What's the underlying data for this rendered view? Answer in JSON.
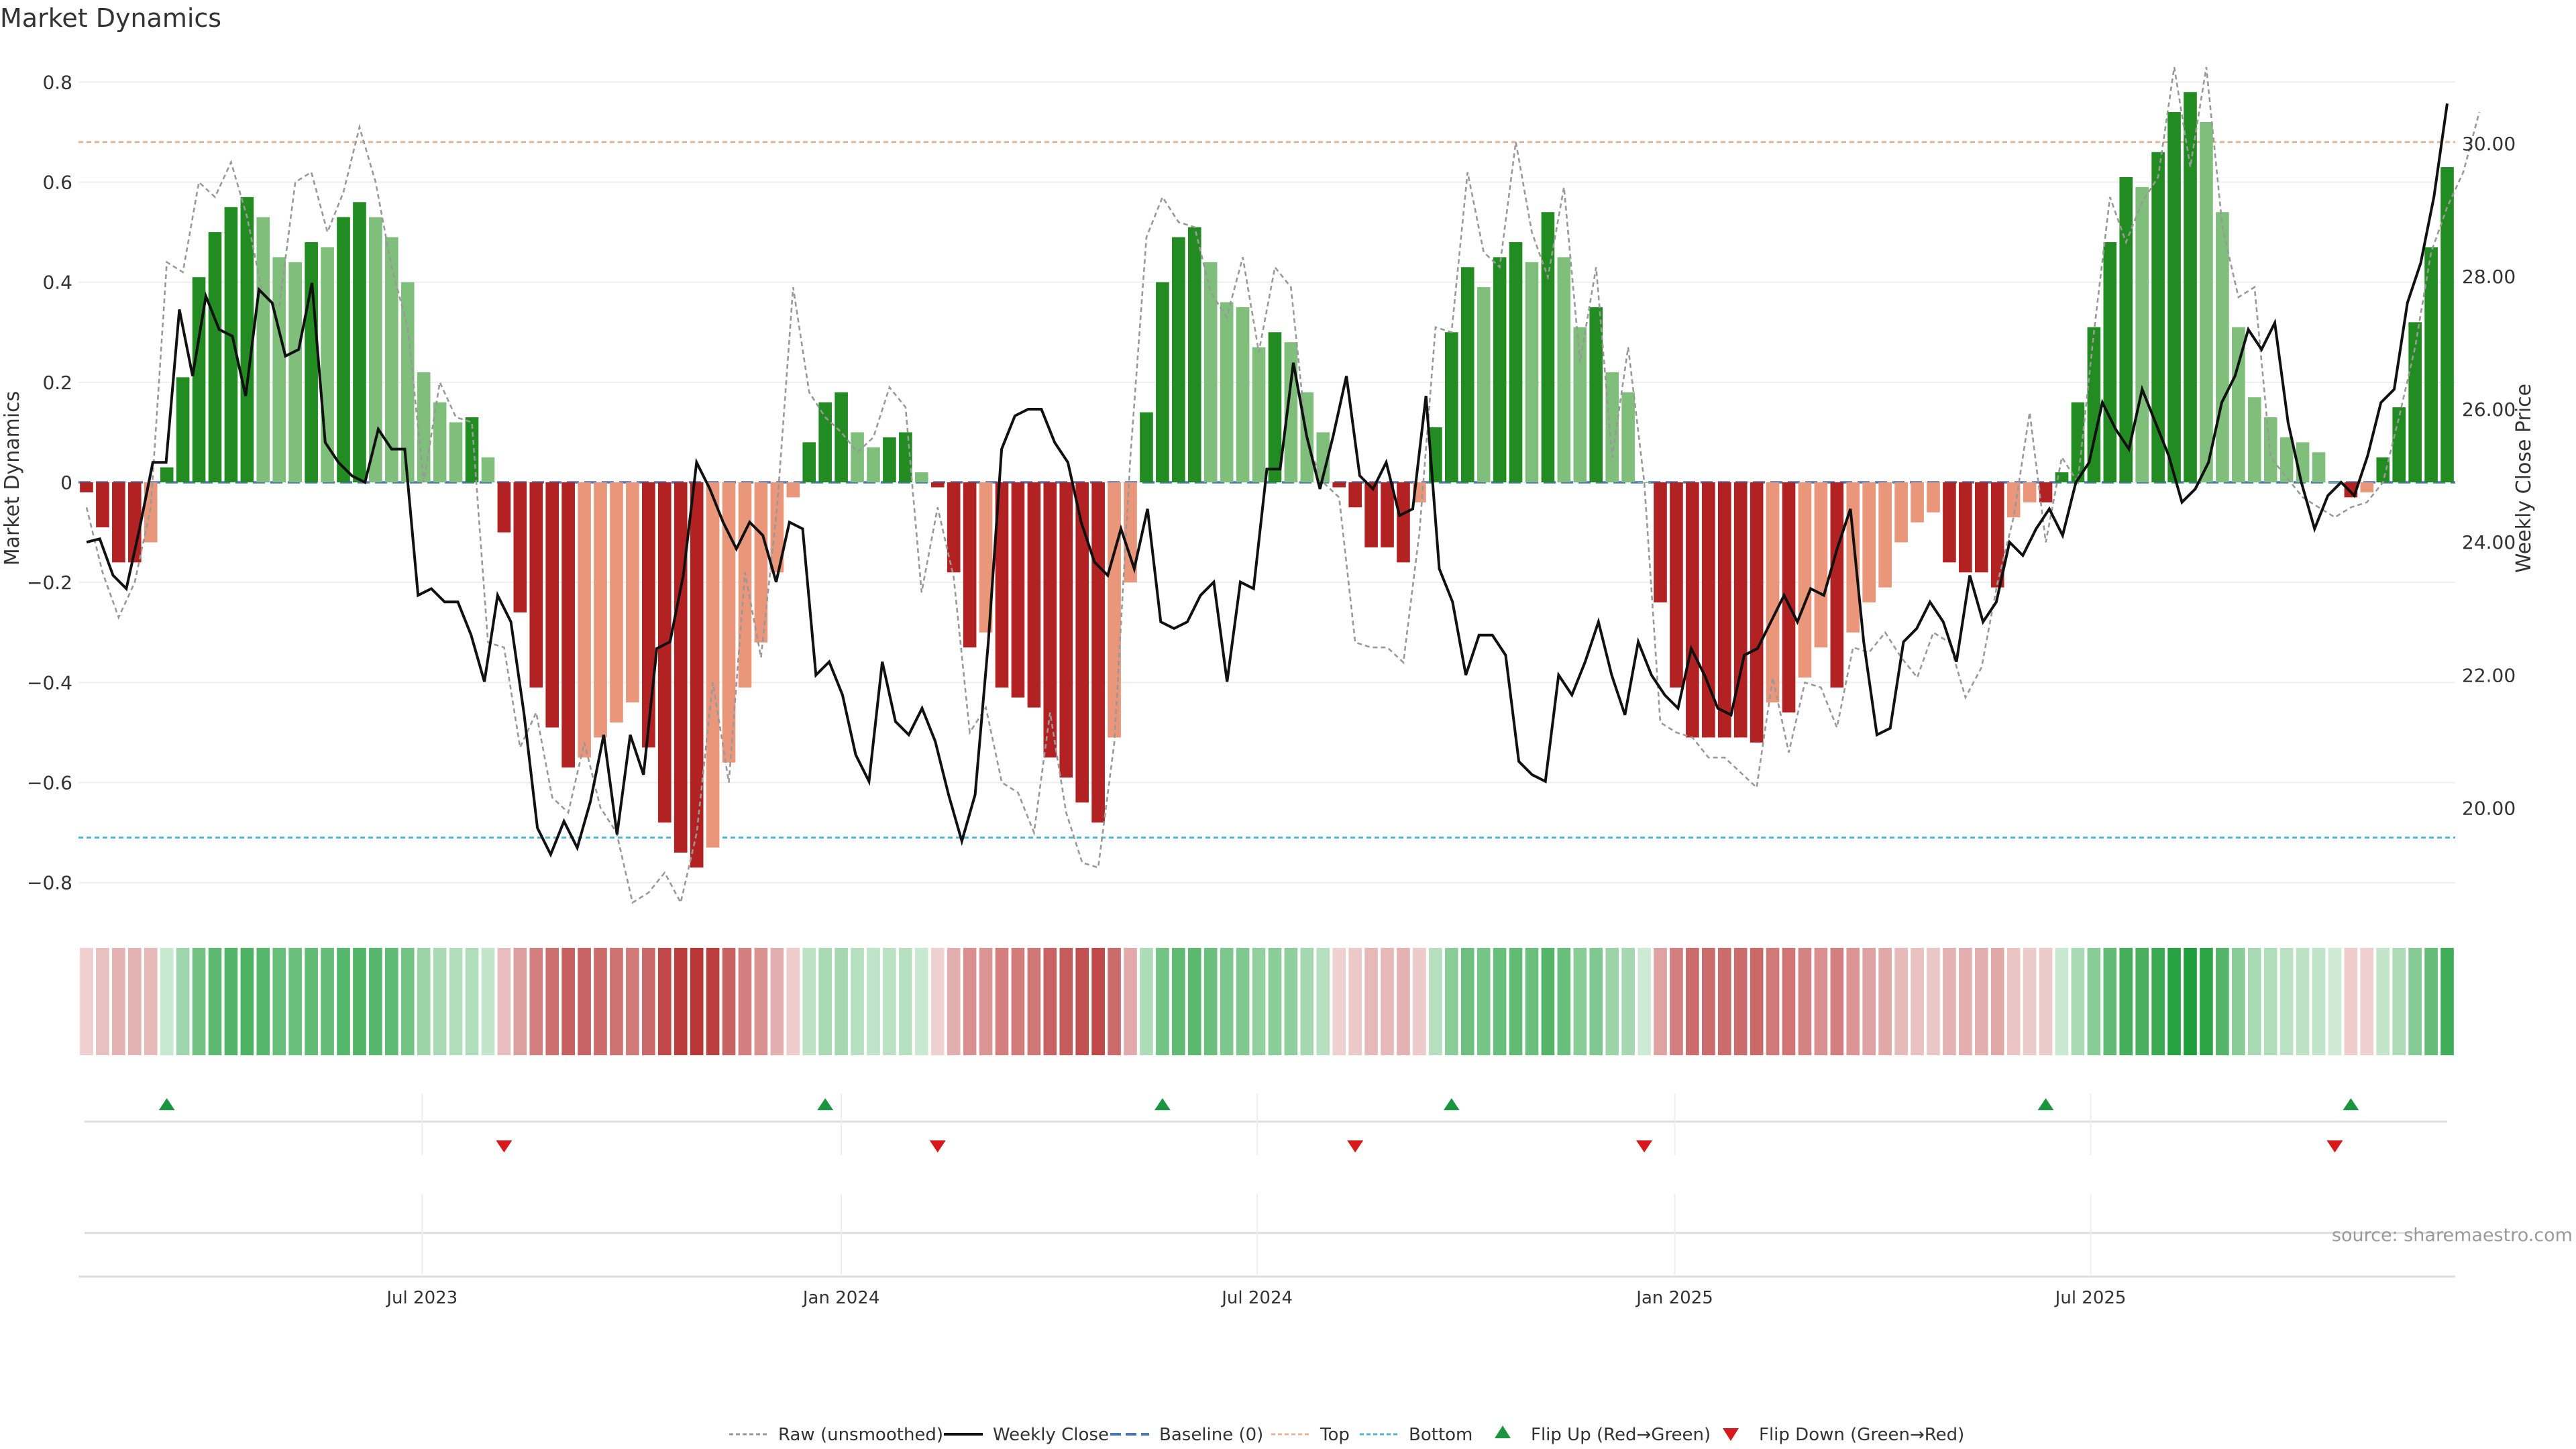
{
  "chart_data": {
    "type": "bar",
    "title": "Market Dynamics",
    "ylabel_left": "Market Dynamics",
    "ylabel_right": "Weekly Close Price",
    "ylim_left": [
      -0.85,
      0.85
    ],
    "ylim_right": [
      18.5,
      31.3
    ],
    "yticks_left": [
      "0.8",
      "0.6",
      "0.4",
      "0.2",
      "0",
      "−0.2",
      "−0.4",
      "−0.6",
      "−0.8"
    ],
    "yticks_left_values": [
      0.8,
      0.6,
      0.4,
      0.2,
      0,
      -0.2,
      -0.4,
      -0.6,
      -0.8
    ],
    "yticks_right": [
      "20.00",
      "22.00",
      "24.00",
      "26.00",
      "28.00",
      "30.00"
    ],
    "yticks_right_values": [
      20,
      22,
      24,
      26,
      28,
      30
    ],
    "xticks": [
      "Jul 2023",
      "Jan 2024",
      "Jul 2024",
      "Jan 2025",
      "Jul 2025"
    ],
    "xticks_index": [
      21.4,
      47.5,
      73.4,
      99.4,
      125.3
    ],
    "top_level": 0.68,
    "bottom_level": -0.71,
    "source": "source: sharemaestro.com",
    "colors": {
      "strong_green": "#228b22",
      "light_green": "#7fbf7b",
      "strong_red": "#b22222",
      "light_red": "#e9967a",
      "raw": "#999999",
      "close": "#111111",
      "baseline": "#4a78b5",
      "top": "#e6b49a",
      "bottom": "#4fb5d1",
      "flip_up": "#1a9641",
      "flip_down": "#d7191c"
    },
    "momentum": [
      -0.02,
      -0.09,
      -0.16,
      -0.16,
      -0.12,
      0.03,
      0.21,
      0.41,
      0.5,
      0.55,
      0.57,
      0.53,
      0.45,
      0.44,
      0.48,
      0.47,
      0.53,
      0.56,
      0.53,
      0.49,
      0.4,
      0.22,
      0.16,
      0.12,
      0.13,
      0.05,
      -0.1,
      -0.26,
      -0.41,
      -0.49,
      -0.57,
      -0.55,
      -0.51,
      -0.48,
      -0.44,
      -0.53,
      -0.68,
      -0.74,
      -0.77,
      -0.73,
      -0.56,
      -0.41,
      -0.32,
      -0.18,
      -0.03,
      0.08,
      0.16,
      0.18,
      0.1,
      0.07,
      0.09,
      0.1,
      0.02,
      -0.01,
      -0.18,
      -0.33,
      -0.3,
      -0.41,
      -0.43,
      -0.45,
      -0.55,
      -0.59,
      -0.64,
      -0.68,
      -0.51,
      -0.2,
      0.14,
      0.4,
      0.49,
      0.51,
      0.44,
      0.36,
      0.35,
      0.27,
      0.3,
      0.28,
      0.18,
      0.1,
      -0.01,
      -0.05,
      -0.13,
      -0.13,
      -0.16,
      -0.04,
      0.11,
      0.3,
      0.43,
      0.39,
      0.45,
      0.48,
      0.44,
      0.54,
      0.45,
      0.31,
      0.35,
      0.22,
      0.18,
      0,
      -0.24,
      -0.41,
      -0.51,
      -0.51,
      -0.51,
      -0.51,
      -0.52,
      -0.44,
      -0.46,
      -0.39,
      -0.33,
      -0.41,
      -0.3,
      -0.24,
      -0.21,
      -0.12,
      -0.08,
      -0.06,
      -0.16,
      -0.18,
      -0.18,
      -0.21,
      -0.07,
      -0.04,
      -0.04,
      0.02,
      0.16,
      0.31,
      0.48,
      0.61,
      0.59,
      0.66,
      0.74,
      0.78,
      0.72,
      0.54,
      0.31,
      0.17,
      0.13,
      0.09,
      0.08,
      0.06,
      0,
      -0.03,
      -0.02,
      0.05,
      0.15,
      0.32,
      0.47,
      0.63
    ],
    "series": [
      {
        "name": "Weekly Close",
        "values": [
          24.0,
          24.05,
          23.5,
          23.3,
          24.2,
          25.2,
          25.2,
          27.5,
          26.5,
          27.7,
          27.2,
          27.1,
          26.2,
          27.8,
          27.6,
          26.8,
          26.9,
          27.9,
          25.5,
          25.2,
          25.0,
          24.9,
          25.7,
          25.4,
          25.4,
          23.2,
          23.3,
          23.1,
          23.1,
          22.6,
          21.9,
          23.2,
          22.8,
          21.4,
          19.7,
          19.3,
          19.8,
          19.4,
          20.1,
          21.1,
          19.6,
          21.1,
          20.5,
          22.4,
          22.5,
          23.5,
          25.2,
          24.8,
          24.3,
          23.9,
          24.3,
          24.1,
          23.4,
          24.3,
          24.2,
          22.0,
          22.2,
          21.7,
          20.8,
          20.4,
          22.2,
          21.3,
          21.1,
          21.5,
          21.0,
          20.2,
          19.5,
          20.2,
          22.5,
          25.4,
          25.9,
          26.0,
          26.0,
          25.5,
          25.2,
          24.3,
          23.7,
          23.5,
          24.2,
          23.6,
          24.5,
          22.8,
          22.7,
          22.8,
          23.2,
          23.4,
          21.9,
          23.4,
          23.3,
          25.1,
          25.1,
          26.7,
          25.6,
          24.8,
          25.6,
          26.5,
          25.0,
          24.8,
          25.2,
          24.4,
          24.5,
          26.2,
          23.6,
          23.1,
          22.0,
          22.6,
          22.6,
          22.3,
          20.7,
          20.5,
          20.4,
          22.0,
          21.7,
          22.2,
          22.8,
          22.0,
          21.4,
          22.5,
          22.0,
          21.7,
          21.5,
          22.4,
          22.0,
          21.5,
          21.4,
          22.3,
          22.4,
          22.8,
          23.2,
          22.8,
          23.3,
          23.2,
          23.9,
          24.5,
          22.5,
          21.1,
          21.2,
          22.5,
          22.7,
          23.1,
          22.8,
          22.2,
          23.5,
          22.8,
          23.1,
          24.0,
          23.8,
          24.2,
          24.5,
          24.1,
          24.9,
          25.2,
          26.1,
          25.7,
          25.4,
          26.3,
          25.8,
          25.3,
          24.6,
          24.8,
          25.2,
          26.1,
          26.5,
          27.2,
          26.9,
          27.3,
          25.8,
          24.9,
          24.2,
          24.7,
          24.9,
          24.7,
          25.3,
          26.1,
          26.3,
          27.6,
          28.2,
          29.2,
          30.6
        ]
      },
      {
        "name": "Raw (unsmoothed)",
        "values": [
          -0.05,
          -0.18,
          -0.27,
          -0.2,
          -0.05,
          0.44,
          0.42,
          0.6,
          0.57,
          0.64,
          0.53,
          0.37,
          0.35,
          0.6,
          0.62,
          0.5,
          0.58,
          0.71,
          0.6,
          0.43,
          0.31,
          0.0,
          0.2,
          0.13,
          0.12,
          -0.32,
          -0.33,
          -0.53,
          -0.46,
          -0.63,
          -0.66,
          -0.52,
          -0.65,
          -0.7,
          -0.84,
          -0.82,
          -0.78,
          -0.84,
          -0.7,
          -0.4,
          -0.6,
          -0.18,
          -0.35,
          -0.05,
          0.39,
          0.18,
          0.13,
          0.1,
          0.06,
          0.09,
          0.19,
          0.15,
          -0.22,
          -0.05,
          -0.19,
          -0.5,
          -0.45,
          -0.6,
          -0.62,
          -0.7,
          -0.46,
          -0.66,
          -0.76,
          -0.77,
          -0.52,
          0.05,
          0.49,
          0.57,
          0.52,
          0.51,
          0.38,
          0.33,
          0.45,
          0.26,
          0.43,
          0.39,
          0.08,
          0.0,
          -0.03,
          -0.32,
          -0.33,
          -0.33,
          -0.36,
          -0.1,
          0.31,
          0.3,
          0.62,
          0.46,
          0.43,
          0.68,
          0.5,
          0.41,
          0.59,
          0.24,
          0.43,
          0.05,
          0.27,
          0.0,
          -0.48,
          -0.5,
          -0.51,
          -0.55,
          -0.55,
          -0.58,
          -0.61,
          -0.39,
          -0.54,
          -0.4,
          -0.41,
          -0.49,
          -0.33,
          -0.34,
          -0.3,
          -0.35,
          -0.39,
          -0.3,
          -0.32,
          -0.43,
          -0.37,
          -0.2,
          -0.07,
          0.14,
          -0.12,
          0.05,
          0.0,
          0.3,
          0.57,
          0.48,
          0.56,
          0.61,
          0.83,
          0.63,
          0.83,
          0.51,
          0.37,
          0.39,
          0.05,
          0.01,
          -0.03,
          -0.05,
          -0.07,
          -0.05,
          -0.04,
          0.0,
          0.13,
          0.27,
          0.46,
          0.55,
          0.62,
          0.74
        ]
      }
    ],
    "flip_up_index": [
      5,
      46,
      67,
      85,
      122,
      141
    ],
    "flip_down_index": [
      26,
      53,
      79,
      97,
      140
    ],
    "legend": [
      "Raw (unsmoothed)",
      "Weekly Close",
      "Baseline (0)",
      "Top",
      "Bottom",
      "Flip Up (Red→Green)",
      "Flip Down (Green→Red)"
    ]
  }
}
